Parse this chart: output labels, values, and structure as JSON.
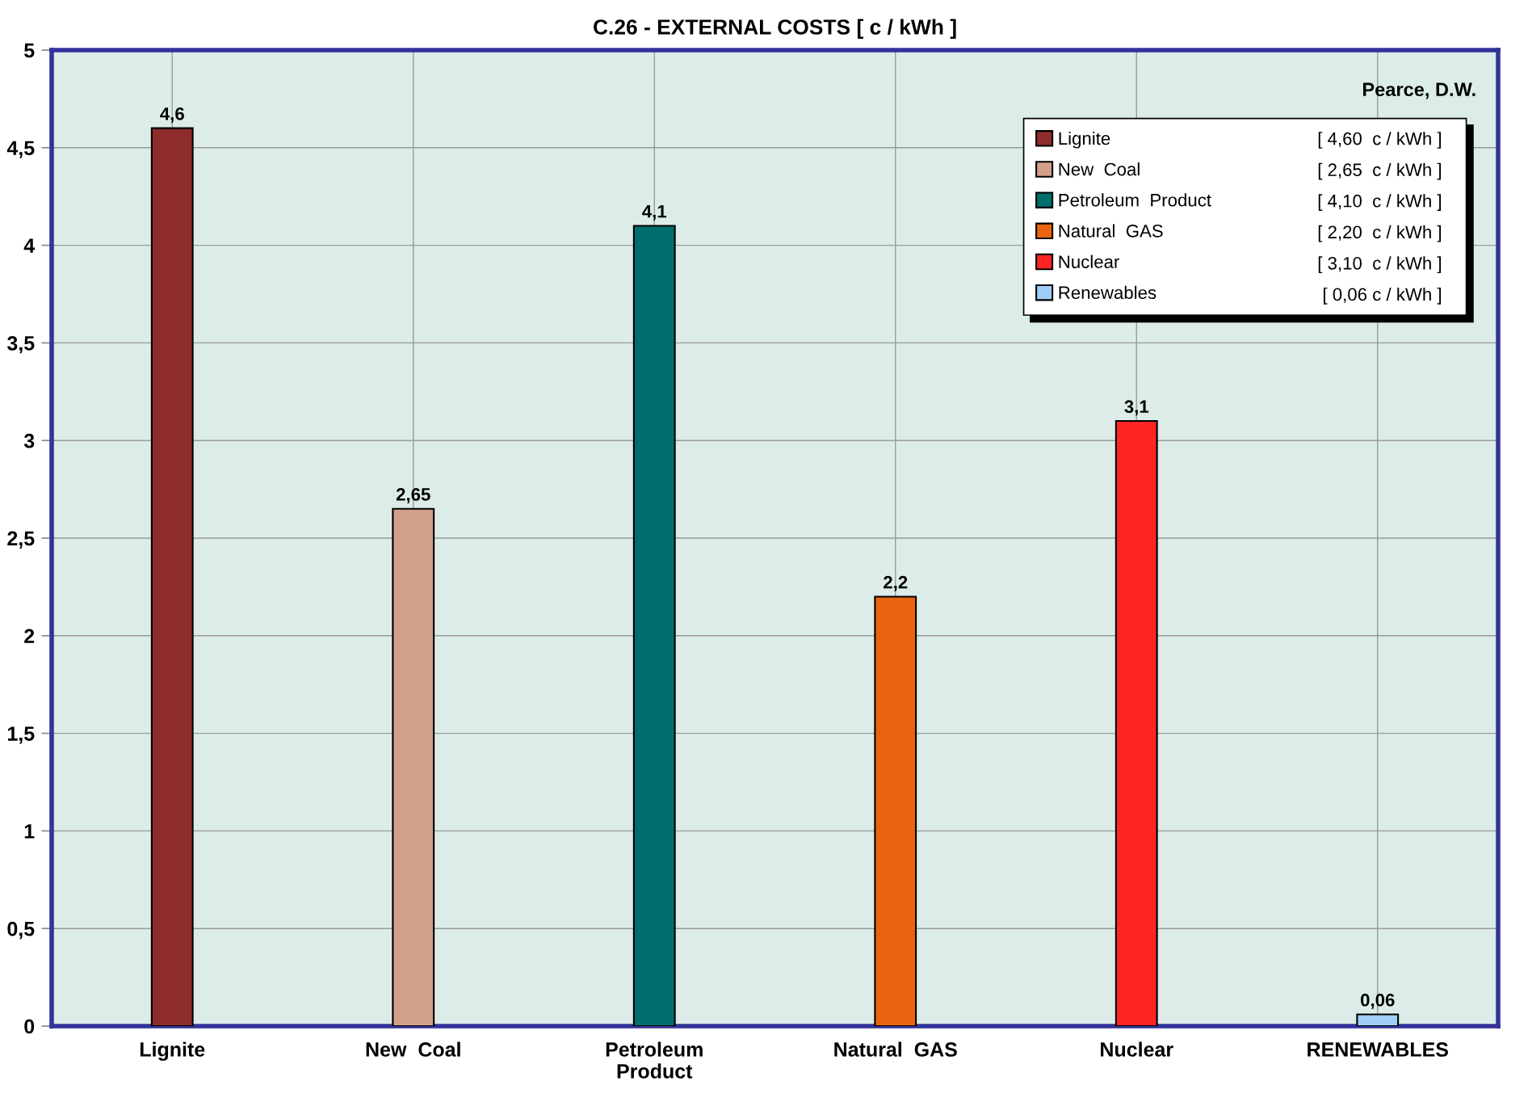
{
  "chart_data": {
    "type": "bar",
    "title": "C.26 - EXTERNAL COSTS [ c / kWh ]",
    "categories": [
      "Lignite",
      "New  Coal",
      "Petroleum\nProduct",
      "Natural  GAS",
      "Nuclear",
      "RENEWABLES"
    ],
    "series": [
      {
        "name": "Lignite",
        "color": "#8e2c2c",
        "values": [
          4.6,
          null,
          null,
          null,
          null,
          null
        ],
        "value_labels": [
          "4,6",
          null,
          null,
          null,
          null,
          null
        ]
      },
      {
        "name": "New  Coal",
        "color": "#d2a08a",
        "values": [
          null,
          2.65,
          null,
          null,
          null,
          null
        ],
        "value_labels": [
          null,
          "2,65",
          null,
          null,
          null,
          null
        ]
      },
      {
        "name": "Petroleum  Product",
        "color": "#006e6c",
        "values": [
          null,
          null,
          4.1,
          null,
          null,
          null
        ],
        "value_labels": [
          null,
          null,
          "4,1",
          null,
          null,
          null
        ]
      },
      {
        "name": "Natural  GAS",
        "color": "#ea6410",
        "values": [
          null,
          null,
          null,
          2.2,
          null,
          null
        ],
        "value_labels": [
          null,
          null,
          null,
          "2,2",
          null,
          null
        ]
      },
      {
        "name": "Nuclear",
        "color": "#ff2424",
        "values": [
          null,
          null,
          null,
          null,
          3.1,
          null
        ],
        "value_labels": [
          null,
          null,
          null,
          null,
          "3,1",
          null
        ]
      },
      {
        "name": "Renewables",
        "color": "#9ecdf6",
        "values": [
          null,
          null,
          null,
          null,
          null,
          0.06
        ],
        "value_labels": [
          null,
          null,
          null,
          null,
          null,
          "0,06"
        ]
      }
    ],
    "ylim": [
      0,
      5
    ],
    "yticks": [
      0,
      {
        "value": 0.5,
        "label": "0,5"
      },
      1,
      {
        "value": 1.5,
        "label": "1,5"
      },
      2,
      {
        "value": 2.5,
        "label": "2,5"
      },
      3,
      {
        "value": 3.5,
        "label": "3,5"
      },
      4,
      {
        "value": 4.5,
        "label": "4,5"
      },
      5
    ],
    "grid": true,
    "legend": "top right",
    "annotations": [
      "Pearce, D.W.",
      "[ 4,60  c / kWh ]",
      "[ 2,65  c / kWh ]",
      "[ 4,10  c / kWh ]",
      "[ 2,20  c / kWh ]",
      "[ 3,10  c / kWh ]",
      "[ 0,06 c / kWh ]"
    ]
  }
}
